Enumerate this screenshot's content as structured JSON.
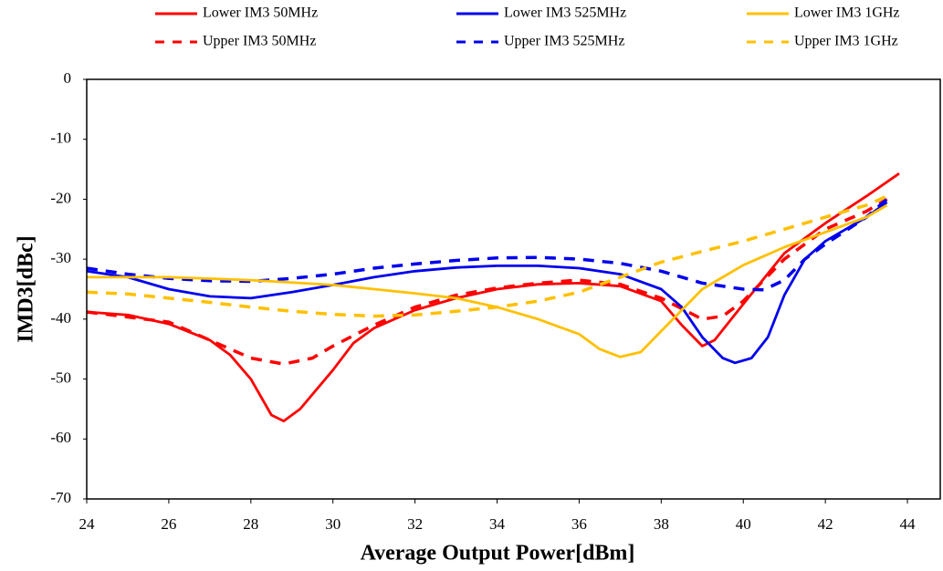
{
  "chart_data": {
    "type": "line",
    "xlabel": "Average Output Power[dBm]",
    "ylabel": "IMD3[dBc]",
    "xlim": [
      24,
      44.8
    ],
    "xticks": [
      24,
      26,
      28,
      30,
      32,
      34,
      36,
      38,
      40,
      42,
      44
    ],
    "ylim": [
      -70,
      0
    ],
    "yticks": [
      -70,
      -60,
      -50,
      -40,
      -30,
      -20,
      -10,
      0
    ],
    "grid": false,
    "legend": "top",
    "series": [
      {
        "name": "Lower IM3 50MHz",
        "color": "#ff0000",
        "dashed": false,
        "x": [
          24,
          25,
          26,
          27,
          27.5,
          28,
          28.5,
          28.8,
          29.2,
          30,
          30.5,
          31,
          32,
          33,
          34,
          35,
          36,
          37,
          38,
          38.5,
          39,
          39.3,
          40,
          41,
          42,
          43,
          43.8
        ],
        "values": [
          -38.8,
          -39.3,
          -40.8,
          -43.5,
          -46,
          -50,
          -56,
          -57,
          -55,
          -48.5,
          -44,
          -41.5,
          -38.5,
          -36.5,
          -35,
          -34.2,
          -34,
          -34.5,
          -37,
          -41,
          -44.5,
          -43.5,
          -37.5,
          -29,
          -24,
          -19.5,
          -15.7
        ]
      },
      {
        "name": "Upper IM3 50MHz",
        "color": "#ff0000",
        "dashed": true,
        "x": [
          24,
          26,
          27,
          28,
          28.8,
          29.5,
          30,
          31,
          32,
          33,
          34,
          35,
          36,
          37,
          38,
          39,
          39.5,
          40,
          41,
          42,
          43,
          43.5
        ],
        "values": [
          -38.8,
          -40.5,
          -43.5,
          -46.5,
          -47.5,
          -46.5,
          -44.5,
          -41,
          -38,
          -36,
          -34.8,
          -34,
          -33.5,
          -34.2,
          -36.5,
          -40,
          -39.5,
          -37,
          -30,
          -25,
          -22,
          -20
        ]
      },
      {
        "name": "Lower IM3 525MHz",
        "color": "#0000ee",
        "dashed": false,
        "x": [
          24,
          25,
          26,
          27,
          28,
          29,
          30,
          31,
          32,
          33,
          34,
          35,
          36,
          37,
          38,
          38.5,
          39,
          39.5,
          39.8,
          40.2,
          40.6,
          41,
          41.5,
          42,
          43,
          43.5
        ],
        "values": [
          -32,
          -33,
          -35,
          -36.2,
          -36.5,
          -35.5,
          -34.3,
          -33,
          -32,
          -31.4,
          -31.1,
          -31.1,
          -31.5,
          -32.5,
          -35,
          -38,
          -43,
          -46.5,
          -47.3,
          -46.5,
          -43,
          -36,
          -30,
          -27,
          -23,
          -20.5
        ]
      },
      {
        "name": "Upper IM3 525MHz",
        "color": "#0000ee",
        "dashed": true,
        "x": [
          24,
          25,
          26,
          27,
          28,
          29,
          30,
          31,
          32,
          33,
          34,
          35,
          36,
          37,
          38,
          39,
          40,
          40.5,
          41,
          41.5,
          42,
          43,
          43.5
        ],
        "values": [
          -31.5,
          -32.5,
          -33.2,
          -33.6,
          -33.7,
          -33.2,
          -32.5,
          -31.5,
          -30.8,
          -30.2,
          -29.8,
          -29.7,
          -30,
          -30.7,
          -32,
          -34,
          -35,
          -35.1,
          -33.5,
          -30,
          -27.5,
          -23,
          -20
        ]
      },
      {
        "name": "Lower IM3 1GHz",
        "color": "#ffc000",
        "dashed": false,
        "x": [
          24,
          26,
          28,
          30,
          31,
          32,
          33,
          34,
          35,
          36,
          36.5,
          37,
          37.5,
          38,
          38.5,
          39,
          40,
          41,
          42,
          43,
          43.5
        ],
        "values": [
          -33,
          -33,
          -33.5,
          -34.3,
          -35,
          -35.7,
          -36.5,
          -38,
          -40,
          -42.5,
          -45,
          -46.3,
          -45.5,
          -42,
          -38.5,
          -35,
          -31,
          -28,
          -25.5,
          -23,
          -21
        ]
      },
      {
        "name": "Upper IM3 1GHz",
        "color": "#ffc000",
        "dashed": true,
        "x": [
          24,
          25,
          26,
          27,
          28,
          29,
          30,
          31,
          32,
          33,
          34,
          35,
          36,
          37,
          38,
          39,
          40,
          41,
          42,
          43,
          43.5
        ],
        "values": [
          -35.5,
          -35.8,
          -36.5,
          -37.2,
          -38,
          -38.7,
          -39.2,
          -39.5,
          -39.3,
          -38.7,
          -38,
          -37,
          -35.5,
          -33,
          -30.5,
          -28.7,
          -27,
          -25,
          -23,
          -21,
          -19.5
        ]
      }
    ]
  }
}
